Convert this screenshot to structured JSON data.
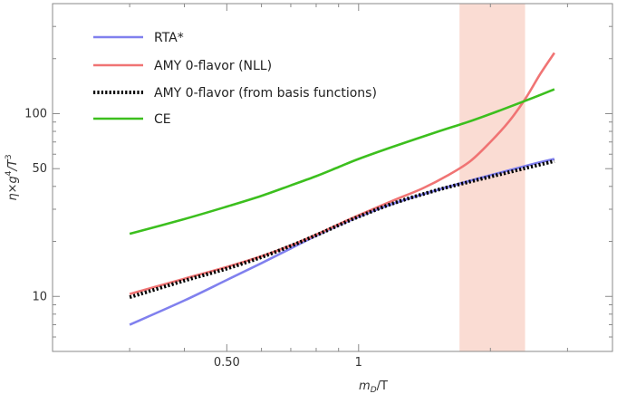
{
  "chart_data": {
    "type": "line",
    "xlabel": {
      "base": "m",
      "sub": "D",
      "rest": "/T"
    },
    "ylabel": {
      "a": "η×g",
      "b": "4",
      "c": "/T",
      "d": "3"
    },
    "x_scale": "log",
    "y_scale": "log",
    "xlim": [
      0.2,
      3.8
    ],
    "ylim": [
      5,
      400
    ],
    "x_major_ticks": [
      {
        "value": 0.5,
        "label": "0.50"
      },
      {
        "value": 1,
        "label": "1"
      }
    ],
    "y_major_ticks": [
      {
        "value": 10,
        "label": "10"
      },
      {
        "value": 50,
        "label": "50"
      },
      {
        "value": 100,
        "label": "100"
      }
    ],
    "band": {
      "x_from": 1.7,
      "x_to": 2.4,
      "color": "#fadcd3"
    },
    "legend_position": "top-left",
    "series": [
      {
        "name": "RTA*",
        "color": "#8080ee",
        "style": "solid",
        "x": [
          0.3,
          0.4,
          0.5,
          0.6,
          0.7,
          0.8,
          0.9,
          1.0,
          1.2,
          1.5,
          1.8,
          2.1,
          2.5,
          2.8
        ],
        "y": [
          7.0,
          9.5,
          12.3,
          15.2,
          18.3,
          21.5,
          24.5,
          27.3,
          32.2,
          38.0,
          43.0,
          47.5,
          53.0,
          56.5
        ]
      },
      {
        "name": "AMY 0-flavor (NLL)",
        "color": "#f07474",
        "style": "solid",
        "x": [
          0.3,
          0.4,
          0.5,
          0.6,
          0.7,
          0.8,
          0.9,
          1.0,
          1.2,
          1.4,
          1.6,
          1.8,
          2.0,
          2.2,
          2.4,
          2.6,
          2.8
        ],
        "y": [
          10.3,
          12.5,
          14.5,
          16.6,
          19.0,
          21.8,
          24.8,
          27.8,
          33.5,
          39.0,
          46.0,
          55.0,
          70.0,
          90.0,
          120.0,
          165.0,
          215.0
        ]
      },
      {
        "name": "AMY 0-flavor (from basis functions)",
        "color": "#000000",
        "style": "dotted",
        "x": [
          0.3,
          0.4,
          0.5,
          0.6,
          0.7,
          0.8,
          0.9,
          1.0,
          1.2,
          1.5,
          1.8,
          2.1,
          2.5,
          2.8
        ],
        "y": [
          9.9,
          12.2,
          14.2,
          16.4,
          18.9,
          21.6,
          24.5,
          27.3,
          32.3,
          38.0,
          42.5,
          46.5,
          51.5,
          55.0
        ]
      },
      {
        "name": "CE",
        "color": "#3cbf1e",
        "style": "solid",
        "x": [
          0.3,
          0.4,
          0.5,
          0.6,
          0.7,
          0.8,
          0.9,
          1.0,
          1.2,
          1.5,
          1.8,
          2.1,
          2.5,
          2.8
        ],
        "y": [
          22.0,
          26.5,
          31.0,
          35.5,
          40.5,
          45.5,
          51.0,
          56.5,
          66.0,
          79.0,
          91.0,
          104.0,
          122.0,
          136.0
        ]
      }
    ]
  }
}
